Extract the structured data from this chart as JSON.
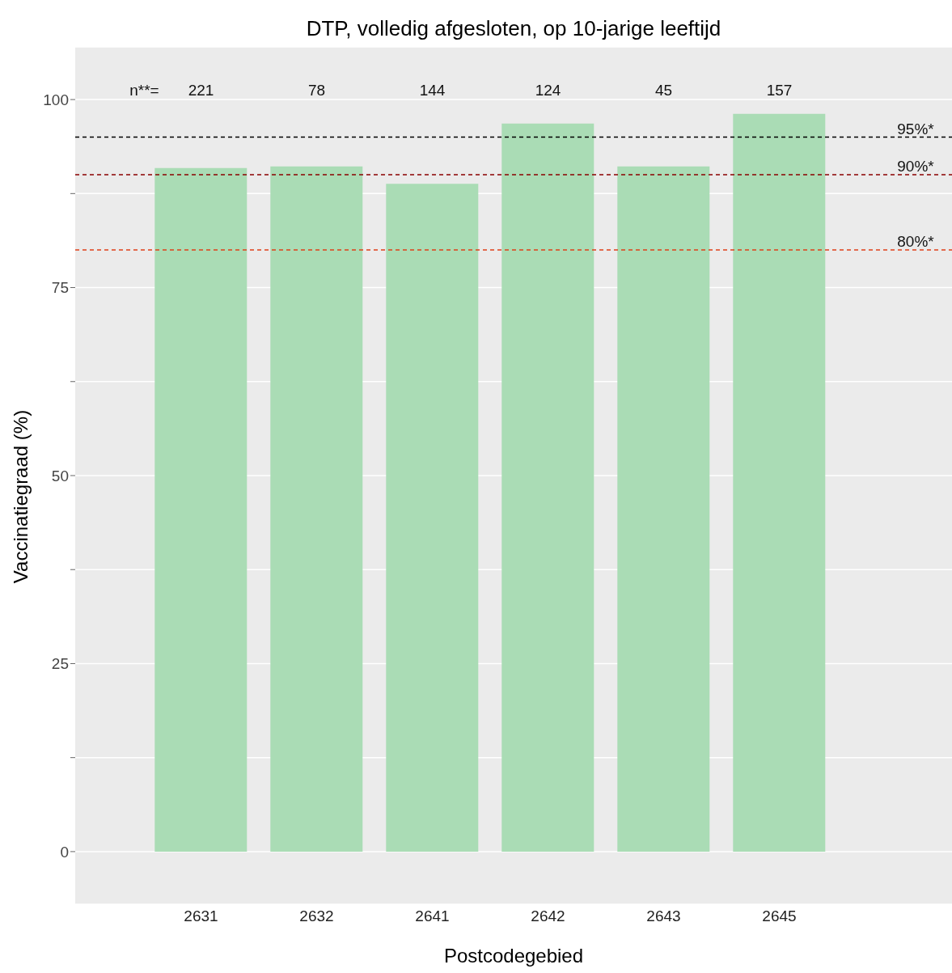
{
  "chart_data": {
    "type": "bar",
    "title": "DTP, volledig afgesloten, op 10-jarige leeftijd",
    "xlabel": "Postcodegebied",
    "ylabel": "Vaccinatiegraad (%)",
    "categories": [
      "2631",
      "2632",
      "2641",
      "2642",
      "2643",
      "2645"
    ],
    "values": [
      90.9,
      91.1,
      88.8,
      96.8,
      91.1,
      98.1
    ],
    "color": "#aadcb5",
    "ylim": [
      -7,
      107
    ],
    "yticks": [
      0,
      {
        "value": 12.5,
        "label": null
      },
      25,
      {
        "value": 37.5,
        "label": null
      },
      50,
      {
        "value": 62.5,
        "label": null
      },
      75,
      {
        "value": 87.5,
        "label": null
      },
      100
    ],
    "grid": "y",
    "ref_lines": [
      {
        "axis": "y",
        "value": 95,
        "label": "95%*",
        "color": "#000000",
        "line_style": "dashed"
      },
      {
        "axis": "y",
        "value": 90,
        "label": "90%*",
        "color": "#8b0000",
        "line_style": "dashed"
      },
      {
        "axis": "y",
        "value": 80,
        "label": "80%*",
        "color": "#e0401a",
        "line_style": "dashed"
      }
    ],
    "annotations": [
      "n**=",
      "221",
      "78",
      "144",
      "124",
      "45",
      "157"
    ]
  }
}
